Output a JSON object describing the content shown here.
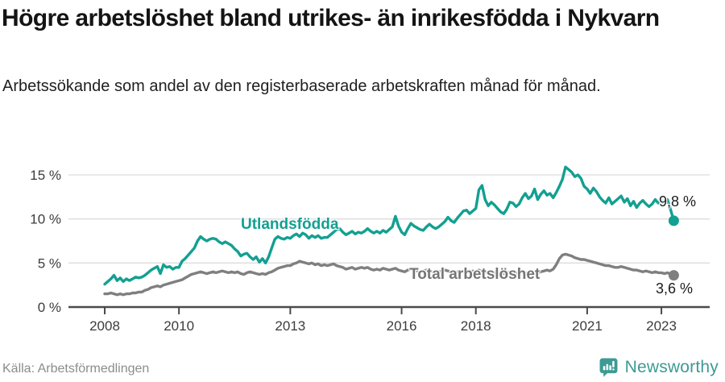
{
  "header": {
    "title": "Högre arbetslöshet bland utrikes- än inrikesfödda i Nykvarn",
    "subtitle": "Arbetssökande som andel av den registerbaserade arbetskraften månad för månad."
  },
  "footer": {
    "source": "Källa: Arbetsförmedlingen",
    "brand": "Newsworthy",
    "brand_color": "#3d9a94"
  },
  "chart_data": {
    "type": "line",
    "title": "Högre arbetslöshet bland utrikes- än inrikesfödda i Nykvarn",
    "subtitle": "Arbetssökande som andel av den registerbaserade arbetskraften månad för månad.",
    "x_unit": "month",
    "x_start": "2008-01",
    "x_end": "2023-05",
    "y_unit": "%",
    "ylim": [
      0,
      16.5
    ],
    "grid": "horizontal",
    "legend_position": "inline-labels",
    "x_ticks": [
      {
        "year": 2008,
        "label": "2008"
      },
      {
        "year": 2010,
        "label": "2010"
      },
      {
        "year": 2013,
        "label": "2013"
      },
      {
        "year": 2016,
        "label": "2016"
      },
      {
        "year": 2018,
        "label": "2018"
      },
      {
        "year": 2021,
        "label": "2021"
      },
      {
        "year": 2023,
        "label": "2023"
      }
    ],
    "y_ticks": [
      {
        "value": 0,
        "label": "0 %"
      },
      {
        "value": 5,
        "label": "5 %"
      },
      {
        "value": 10,
        "label": "10 %"
      },
      {
        "value": 15,
        "label": "15 %"
      }
    ],
    "labels": {
      "series1": "Utlandsfödda",
      "series2": "Total arbetslöshet",
      "end1": "9,8 %",
      "end2": "3,6 %"
    },
    "colors": {
      "series1": "#12a091",
      "series2": "#7f7f7f",
      "grid": "#dcdcdc",
      "axis": "#4a4a4a",
      "tick_text": "#3c3c3c"
    },
    "series": [
      {
        "name": "Utlandsfödda",
        "color": "#12a091",
        "end_label": "9,8 %",
        "end_value": 9.8,
        "values": [
          2.6,
          2.9,
          3.2,
          3.6,
          3.0,
          3.3,
          2.9,
          3.2,
          3.0,
          3.2,
          3.4,
          3.3,
          3.4,
          3.6,
          3.9,
          4.2,
          4.4,
          4.6,
          3.8,
          4.8,
          4.5,
          4.6,
          4.3,
          4.5,
          4.5,
          5.2,
          5.5,
          5.9,
          6.3,
          6.7,
          7.5,
          8.0,
          7.7,
          7.5,
          7.7,
          7.8,
          7.7,
          7.4,
          7.2,
          7.4,
          7.2,
          7.0,
          6.6,
          6.3,
          5.8,
          6.0,
          6.1,
          5.7,
          5.4,
          5.7,
          5.1,
          5.5,
          5.0,
          5.7,
          6.7,
          7.7,
          8.0,
          7.8,
          7.7,
          7.9,
          7.8,
          8.1,
          8.3,
          8.0,
          8.4,
          8.2,
          7.8,
          8.1,
          7.9,
          8.1,
          7.8,
          7.9,
          7.9,
          8.2,
          8.5,
          8.8,
          8.9,
          8.5,
          8.2,
          8.4,
          8.6,
          8.3,
          8.5,
          8.4,
          8.6,
          8.9,
          8.6,
          8.4,
          8.6,
          8.4,
          8.7,
          8.5,
          8.8,
          9.1,
          10.3,
          9.2,
          8.5,
          8.2,
          8.9,
          9.5,
          9.2,
          9.0,
          8.8,
          8.7,
          9.1,
          9.4,
          9.1,
          8.9,
          9.1,
          9.4,
          9.7,
          10.2,
          9.8,
          9.6,
          10.1,
          10.5,
          10.9,
          11.0,
          10.6,
          10.9,
          11.2,
          13.3,
          13.8,
          12.2,
          11.5,
          11.9,
          11.6,
          11.2,
          10.8,
          10.6,
          11.1,
          11.9,
          11.8,
          11.4,
          11.7,
          12.4,
          12.9,
          12.3,
          12.6,
          13.4,
          12.2,
          12.8,
          13.2,
          12.7,
          12.9,
          12.4,
          13.0,
          13.7,
          14.5,
          15.9,
          15.6,
          15.3,
          14.8,
          15.0,
          14.6,
          13.7,
          13.4,
          12.9,
          13.5,
          13.1,
          12.5,
          12.1,
          11.8,
          12.4,
          11.7,
          12.0,
          12.3,
          12.6,
          11.9,
          12.3,
          11.5,
          12.0,
          11.3,
          11.8,
          12.1,
          11.7,
          11.4,
          11.7,
          12.2,
          11.8,
          12.1,
          11.7,
          12.2,
          11.0,
          9.8
        ]
      },
      {
        "name": "Total arbetslöshet",
        "color": "#7f7f7f",
        "end_label": "3,6 %",
        "end_value": 3.6,
        "values": [
          1.5,
          1.5,
          1.6,
          1.5,
          1.4,
          1.5,
          1.4,
          1.5,
          1.5,
          1.6,
          1.6,
          1.7,
          1.7,
          1.9,
          2.0,
          2.2,
          2.3,
          2.4,
          2.3,
          2.5,
          2.6,
          2.7,
          2.8,
          2.9,
          3.0,
          3.1,
          3.3,
          3.5,
          3.7,
          3.8,
          3.9,
          4.0,
          3.9,
          3.8,
          3.9,
          4.0,
          3.9,
          4.0,
          4.1,
          4.0,
          3.9,
          4.0,
          3.9,
          4.0,
          3.8,
          3.7,
          3.9,
          4.0,
          3.9,
          3.8,
          3.7,
          3.8,
          3.7,
          3.9,
          4.0,
          4.2,
          4.4,
          4.5,
          4.6,
          4.7,
          4.7,
          4.9,
          5.0,
          5.2,
          5.1,
          5.0,
          4.9,
          5.0,
          4.8,
          4.9,
          4.7,
          4.8,
          4.7,
          4.8,
          4.9,
          4.7,
          4.6,
          4.5,
          4.3,
          4.4,
          4.5,
          4.3,
          4.4,
          4.5,
          4.4,
          4.5,
          4.3,
          4.2,
          4.3,
          4.2,
          4.4,
          4.3,
          4.2,
          4.3,
          4.4,
          4.2,
          4.1,
          4.0,
          4.2,
          4.3,
          4.2,
          4.1,
          4.0,
          4.1,
          4.2,
          4.1,
          4.0,
          4.1,
          4.0,
          4.1,
          4.2,
          4.1,
          4.0,
          3.9,
          4.0,
          4.1,
          4.0,
          3.9,
          4.0,
          4.1,
          4.0,
          4.2,
          4.1,
          4.0,
          3.9,
          3.8,
          3.9,
          3.8,
          3.7,
          3.8,
          3.9,
          4.0,
          3.9,
          3.8,
          3.9,
          4.0,
          3.9,
          3.8,
          3.9,
          4.0,
          3.9,
          4.0,
          4.1,
          4.2,
          4.1,
          4.3,
          4.8,
          5.5,
          5.9,
          6.0,
          5.9,
          5.8,
          5.6,
          5.5,
          5.4,
          5.4,
          5.3,
          5.2,
          5.1,
          5.0,
          4.9,
          4.8,
          4.7,
          4.7,
          4.6,
          4.5,
          4.5,
          4.6,
          4.5,
          4.4,
          4.3,
          4.2,
          4.2,
          4.1,
          4.0,
          4.1,
          4.0,
          3.9,
          4.0,
          3.9,
          3.9,
          3.8,
          3.9,
          3.7,
          3.6
        ]
      }
    ]
  }
}
